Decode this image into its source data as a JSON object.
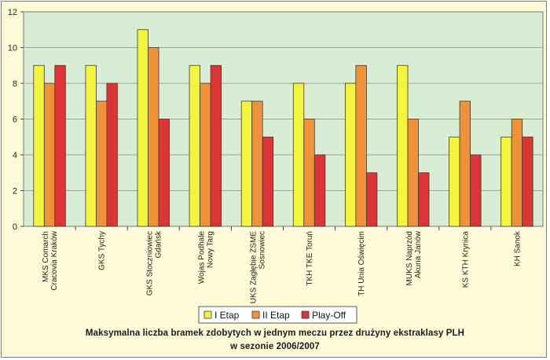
{
  "chart_data": {
    "type": "bar",
    "categories": [
      [
        "MKS Comarch",
        "Cracovia Kraków"
      ],
      [
        "GKS Tychy"
      ],
      [
        "GKS Stoczniowiec",
        "Gdańsk"
      ],
      [
        "Wojas Podhale",
        "Nowy Targ"
      ],
      [
        "UKS Zagłębie ZSME",
        "Sosnowiec"
      ],
      [
        "TKH TKE Toruń"
      ],
      [
        "TH Unia Oświęcim"
      ],
      [
        "MUKS Naprzód",
        "Akuna Janów"
      ],
      [
        "KS KTH Krynica"
      ],
      [
        "KH Sanok"
      ]
    ],
    "series": [
      {
        "name": "I Etap",
        "color": "#f4f43c",
        "values": [
          9,
          9,
          11,
          9,
          7,
          8,
          8,
          9,
          5,
          5
        ]
      },
      {
        "name": "II Etap",
        "color": "#f0923a",
        "values": [
          8,
          7,
          10,
          8,
          7,
          6,
          9,
          6,
          7,
          6
        ]
      },
      {
        "name": "Play-Off",
        "color": "#dd3437",
        "values": [
          9,
          8,
          6,
          9,
          5,
          4,
          3,
          3,
          4,
          5
        ]
      }
    ],
    "ylim": [
      0,
      12
    ],
    "yticks": [
      0,
      2,
      4,
      6,
      8,
      10,
      12
    ],
    "grid": true,
    "legend": "bottom",
    "plot_background": "#d9ecd4",
    "title": [
      "Maksymalna liczba bramek zdobytych w jednym meczu przez drużyny ekstraklasy PLH",
      "w sezonie 2006/2007"
    ]
  }
}
